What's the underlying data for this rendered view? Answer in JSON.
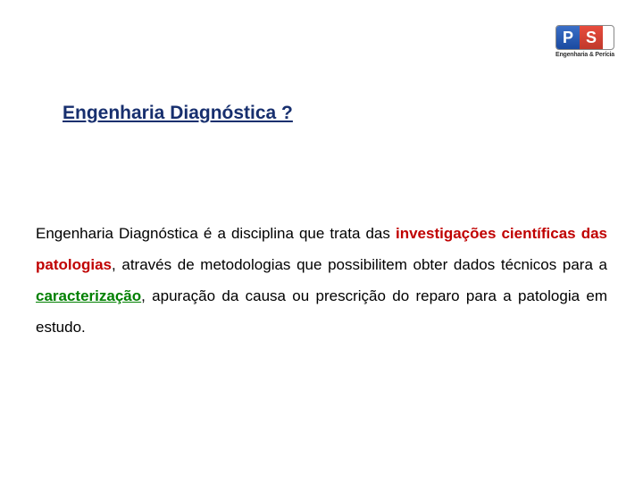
{
  "logo": {
    "letter_p": "P",
    "letter_s": "S",
    "tagline": "Engenharia & Perícia",
    "p_bg": "#1a4aa0",
    "s_bg": "#c0392b"
  },
  "title": "Engenharia Diagnóstica ?",
  "paragraph": {
    "part1": "Engenharia Diagnóstica é a disciplina que trata das ",
    "emph1": "investigações científicas das patologias",
    "part2": ", através de metodologias que possibilitem obter dados técnicos para a ",
    "emph2": "caracterização",
    "part3": ", apuração da causa ou prescrição do reparo para a patologia em estudo."
  },
  "colors": {
    "title_color": "#172f6e",
    "emph_red": "#c00000",
    "emph_green": "#008000",
    "body_text": "#000000",
    "background": "#ffffff"
  },
  "typography": {
    "title_fontsize": 21,
    "body_fontsize": 17,
    "line_height": 2.05,
    "font_family": "Arial"
  }
}
